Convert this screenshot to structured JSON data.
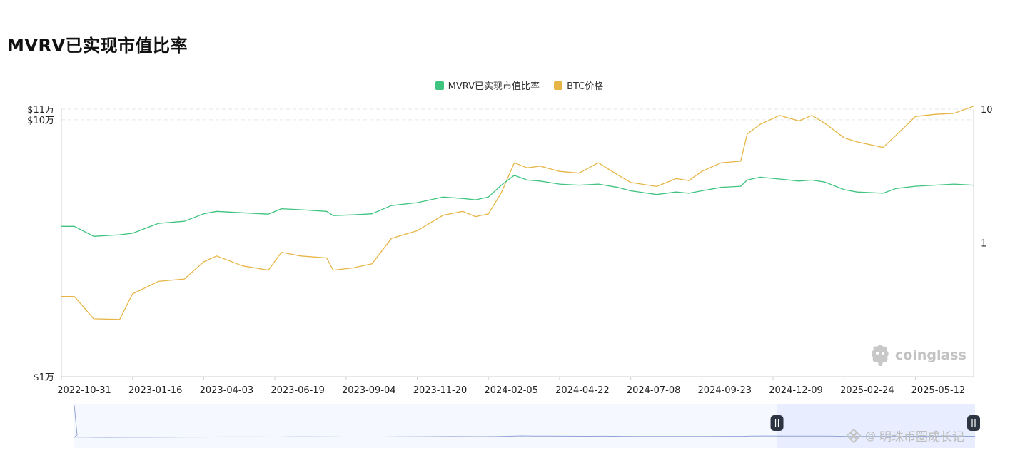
{
  "page": {
    "title": "MVRV已实现市值比率"
  },
  "watermark": {
    "brand": "coinglass",
    "icon": "coinglass-logo-icon",
    "footer": "明珠币圈成长记",
    "footer_icon": "binance-logo-icon"
  },
  "colors": {
    "mvrv": "#3ec47e",
    "btc": "#e6b545",
    "grid": "#e6e6e6",
    "navigator_fill": "#e8eeff",
    "handle": "#2e3542"
  },
  "chart_data": {
    "type": "line",
    "title": "MVRV已实现市值比率",
    "x": [
      "2022-10-31",
      "2022-11-14",
      "2022-12-05",
      "2023-01-02",
      "2023-01-16",
      "2023-02-13",
      "2023-03-13",
      "2023-04-03",
      "2023-04-17",
      "2023-05-15",
      "2023-06-12",
      "2023-06-26",
      "2023-07-17",
      "2023-08-14",
      "2023-08-21",
      "2023-09-11",
      "2023-10-02",
      "2023-10-23",
      "2023-11-20",
      "2023-12-18",
      "2024-01-08",
      "2024-01-22",
      "2024-02-05",
      "2024-02-19",
      "2024-03-04",
      "2024-03-18",
      "2024-04-01",
      "2024-04-22",
      "2024-05-13",
      "2024-06-03",
      "2024-06-24",
      "2024-07-08",
      "2024-08-05",
      "2024-08-26",
      "2024-09-09",
      "2024-09-23",
      "2024-10-14",
      "2024-11-04",
      "2024-11-11",
      "2024-11-25",
      "2024-12-16",
      "2025-01-06",
      "2025-01-20",
      "2025-02-03",
      "2025-02-24",
      "2025-03-10",
      "2025-04-07",
      "2025-04-21",
      "2025-05-12",
      "2025-06-02",
      "2025-06-23",
      "2025-07-14"
    ],
    "series": [
      {
        "name": "MVRV已实现市值比率",
        "axis": "right",
        "values": [
          1.33,
          1.33,
          1.12,
          1.15,
          1.18,
          1.4,
          1.45,
          1.65,
          1.72,
          1.68,
          1.64,
          1.8,
          1.77,
          1.72,
          1.6,
          1.62,
          1.65,
          1.9,
          2.0,
          2.2,
          2.15,
          2.1,
          2.2,
          2.7,
          3.2,
          2.95,
          2.9,
          2.75,
          2.7,
          2.75,
          2.6,
          2.45,
          2.3,
          2.4,
          2.35,
          2.45,
          2.6,
          2.65,
          2.95,
          3.1,
          3.0,
          2.9,
          2.95,
          2.85,
          2.5,
          2.4,
          2.35,
          2.55,
          2.65,
          2.7,
          2.75,
          2.7
        ]
      },
      {
        "name": "BTC价格",
        "axis": "left",
        "values": [
          20500,
          20500,
          16800,
          16700,
          21000,
          23500,
          24000,
          28000,
          29500,
          27000,
          26000,
          30500,
          29500,
          29000,
          26000,
          26500,
          27500,
          34500,
          37000,
          42500,
          44000,
          42000,
          43000,
          52000,
          68000,
          65000,
          66000,
          63000,
          62000,
          68000,
          61000,
          57000,
          55000,
          59000,
          58000,
          63000,
          68000,
          69000,
          88000,
          96000,
          104000,
          99000,
          104000,
          97000,
          85000,
          82000,
          78000,
          87000,
          103000,
          105000,
          106000,
          113000
        ]
      }
    ],
    "y_left": {
      "ticks": [
        "$1万",
        "$10万",
        "$11万"
      ],
      "values": [
        10000,
        100000,
        110000
      ],
      "scale": "log",
      "range": [
        10000,
        110000
      ]
    },
    "y_right": {
      "ticks": [
        "1",
        "10"
      ],
      "values": [
        1,
        10
      ],
      "scale": "log",
      "range": [
        0.1,
        10
      ]
    },
    "x_ticks": [
      "2022-10-31",
      "2023-01-16",
      "2023-04-03",
      "2023-06-19",
      "2023-09-04",
      "2023-11-20",
      "2024-02-05",
      "2024-04-22",
      "2024-07-08",
      "2024-09-23",
      "2024-12-09",
      "2025-02-24",
      "2025-05-12"
    ],
    "grid": true,
    "legend": "top-center",
    "navigator": {
      "selected_start": "2024-12-09",
      "selected_end": "2025-07-14"
    }
  }
}
